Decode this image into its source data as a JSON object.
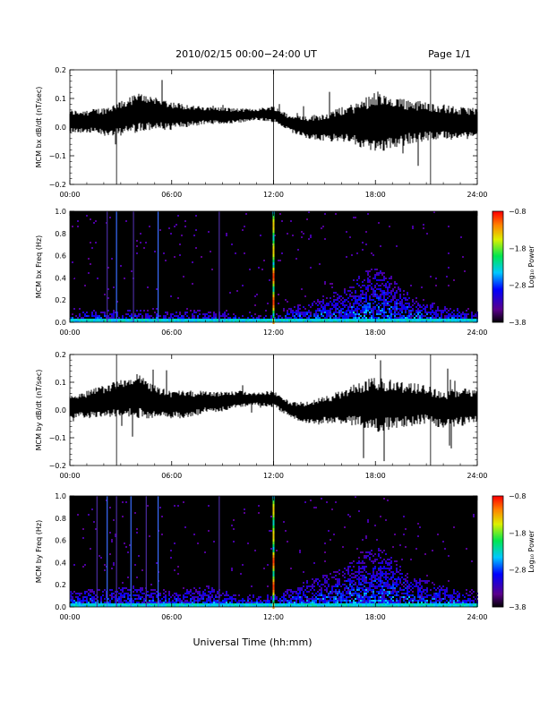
{
  "header": {
    "title": "2010/02/15  00:00−24:00 UT",
    "page": "Page 1/1"
  },
  "xlabel": "Universal Time (hh:mm)",
  "chart_data": [
    {
      "type": "line",
      "ylabel": "MCM bx dB/dt (nT/sec)",
      "xlim": [
        0,
        24
      ],
      "ylim": [
        -0.2,
        0.2
      ],
      "xticks": [
        "00:00",
        "06:00",
        "12:00",
        "18:00",
        "24:00"
      ],
      "yticks": [
        "−0.2",
        "−0.1",
        "0.0",
        "0.1",
        "0.2"
      ],
      "markers_hours": [
        2.75,
        12.0,
        21.25
      ],
      "envelope_hours": [
        0,
        1,
        2,
        3,
        4,
        5,
        6,
        7,
        8,
        9,
        10,
        11,
        12,
        13,
        14,
        15,
        16,
        17,
        18,
        19,
        20,
        21,
        22,
        23,
        24
      ],
      "envelope_center": [
        0.02,
        0.02,
        0.02,
        0.03,
        0.05,
        0.05,
        0.04,
        0.04,
        0.04,
        0.04,
        0.04,
        0.045,
        0.045,
        0.01,
        0.0,
        0.0,
        0.01,
        0.01,
        0.02,
        0.01,
        0.02,
        0.02,
        0.02,
        0.01,
        0.02
      ],
      "envelope_amplitude": [
        0.04,
        0.04,
        0.05,
        0.06,
        0.07,
        0.06,
        0.05,
        0.04,
        0.03,
        0.03,
        0.025,
        0.02,
        0.03,
        0.03,
        0.04,
        0.05,
        0.06,
        0.08,
        0.11,
        0.09,
        0.08,
        0.07,
        0.06,
        0.06,
        0.05
      ]
    },
    {
      "type": "heatmap",
      "ylabel": "MCM bx Freq (Hz)",
      "xlim": [
        0,
        24
      ],
      "ylim": [
        0,
        1.0
      ],
      "xticks": [
        "00:00",
        "06:00",
        "12:00",
        "18:00",
        "24:00"
      ],
      "yticks": [
        "0.0",
        "0.2",
        "0.4",
        "0.6",
        "0.8",
        "1.0"
      ],
      "colorbar": {
        "label": "Log₁₀ Power",
        "range": [
          -3.8,
          -0.8
        ],
        "ticks": [
          "−0.8",
          "−1.8",
          "−2.8",
          "−3.8"
        ]
      },
      "background_power": -3.8,
      "noise_profile_hours": [
        0,
        2,
        4,
        6,
        8,
        10,
        12,
        14,
        16,
        17,
        18,
        19,
        20,
        22,
        24
      ],
      "noise_profile_height": [
        0.1,
        0.12,
        0.12,
        0.1,
        0.12,
        0.08,
        0.08,
        0.2,
        0.3,
        0.45,
        0.5,
        0.4,
        0.25,
        0.15,
        0.1
      ],
      "vertical_lines_hours": [
        2.2,
        2.75,
        3.75,
        5.2,
        8.8,
        12.0
      ]
    },
    {
      "type": "line",
      "ylabel": "MCM by dB/dt (nT/sec)",
      "xlim": [
        0,
        24
      ],
      "ylim": [
        -0.2,
        0.2
      ],
      "xticks": [
        "00:00",
        "06:00",
        "12:00",
        "18:00",
        "24:00"
      ],
      "yticks": [
        "−0.2",
        "−0.1",
        "0.0",
        "0.1",
        "0.2"
      ],
      "markers_hours": [
        2.75,
        12.0,
        21.25
      ],
      "envelope_hours": [
        0,
        1,
        2,
        3,
        4,
        5,
        6,
        7,
        8,
        9,
        10,
        11,
        12,
        13,
        14,
        15,
        16,
        17,
        18,
        19,
        20,
        21,
        22,
        23,
        24
      ],
      "envelope_center": [
        0.01,
        0.02,
        0.03,
        0.04,
        0.05,
        0.03,
        0.02,
        0.02,
        0.03,
        0.03,
        0.04,
        0.04,
        0.04,
        0.0,
        -0.01,
        0.0,
        0.01,
        0.02,
        0.02,
        0.02,
        0.02,
        0.02,
        0.0,
        0.01,
        0.02
      ],
      "envelope_amplitude": [
        0.04,
        0.05,
        0.06,
        0.07,
        0.08,
        0.06,
        0.05,
        0.05,
        0.04,
        0.035,
        0.03,
        0.025,
        0.03,
        0.03,
        0.04,
        0.05,
        0.06,
        0.08,
        0.1,
        0.09,
        0.08,
        0.07,
        0.07,
        0.07,
        0.06
      ]
    },
    {
      "type": "heatmap",
      "ylabel": "MCM by Freq (Hz)",
      "xlim": [
        0,
        24
      ],
      "ylim": [
        0,
        1.0
      ],
      "xticks": [
        "00:00",
        "06:00",
        "12:00",
        "18:00",
        "24:00"
      ],
      "yticks": [
        "0.0",
        "0.2",
        "0.4",
        "0.6",
        "0.8",
        "1.0"
      ],
      "colorbar": {
        "label": "Log₁₀ Power",
        "range": [
          -3.8,
          -0.8
        ],
        "ticks": [
          "−0.8",
          "−1.8",
          "−2.8",
          "−3.8"
        ]
      },
      "background_power": -3.8,
      "noise_profile_hours": [
        0,
        2,
        4,
        6,
        8,
        10,
        12,
        14,
        16,
        17,
        18,
        19,
        20,
        22,
        24
      ],
      "noise_profile_height": [
        0.15,
        0.18,
        0.2,
        0.15,
        0.2,
        0.12,
        0.12,
        0.25,
        0.35,
        0.5,
        0.55,
        0.45,
        0.3,
        0.2,
        0.15
      ],
      "vertical_lines_hours": [
        1.6,
        2.2,
        2.75,
        3.6,
        4.5,
        5.2,
        8.8,
        12.0
      ]
    }
  ]
}
